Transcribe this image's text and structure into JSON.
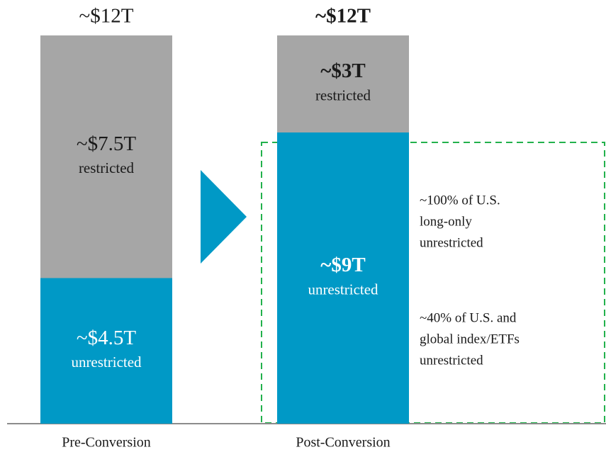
{
  "chart_data": {
    "type": "stacked_bar",
    "categories": [
      "Pre-Conversion",
      "Post-Conversion"
    ],
    "total_labels": [
      "~$12T",
      "~$12T"
    ],
    "series": [
      {
        "name": "unrestricted",
        "color": "#0099c6",
        "values": [
          4.5,
          9
        ],
        "value_labels": [
          "~$4.5T",
          "~$9T"
        ]
      },
      {
        "name": "restricted",
        "color": "#a6a6a6",
        "values": [
          7.5,
          3
        ],
        "value_labels": [
          "~$7.5T",
          "~$3T"
        ]
      }
    ],
    "annotations": [
      {
        "lines": [
          "~100% of U.S.",
          "long-only",
          "unrestricted"
        ]
      },
      {
        "lines": [
          "~40% of U.S. and",
          "global index/ETFs",
          "unrestricted"
        ]
      }
    ]
  }
}
